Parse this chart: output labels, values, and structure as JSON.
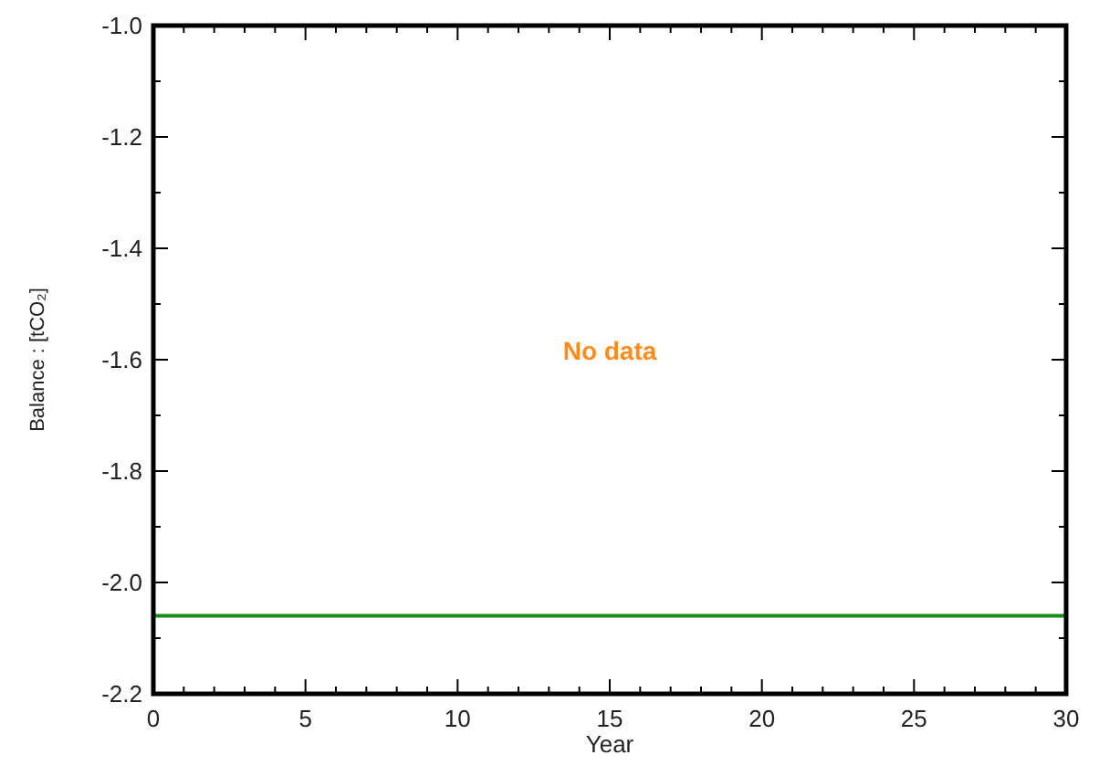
{
  "chart_data": {
    "type": "line",
    "xlabel": "Year",
    "ylabel": "Balance : [tCO₂]",
    "annotations": [
      "No data"
    ],
    "x": [
      0,
      30
    ],
    "series": [
      {
        "color": "#1a8c1a",
        "values": [
          -2.06,
          -2.06
        ]
      }
    ],
    "xlim": [
      0,
      30
    ],
    "xticks": [
      0,
      5,
      10,
      15,
      20,
      25,
      30
    ],
    "ylim": [
      -2.2,
      -1.0
    ],
    "yticks": [
      {
        "value": -2.2,
        "label": "-2.2"
      },
      {
        "value": -2.0,
        "label": "-2.0"
      },
      {
        "value": -1.8,
        "label": "-1.8"
      },
      {
        "value": -1.6,
        "label": "-1.6"
      },
      {
        "value": -1.4,
        "label": "-1.4"
      },
      {
        "value": -1.2,
        "label": "-1.2"
      },
      {
        "value": -1.0,
        "label": "-1.0"
      }
    ],
    "grid": false,
    "marker": "none",
    "line_style": "solid"
  }
}
